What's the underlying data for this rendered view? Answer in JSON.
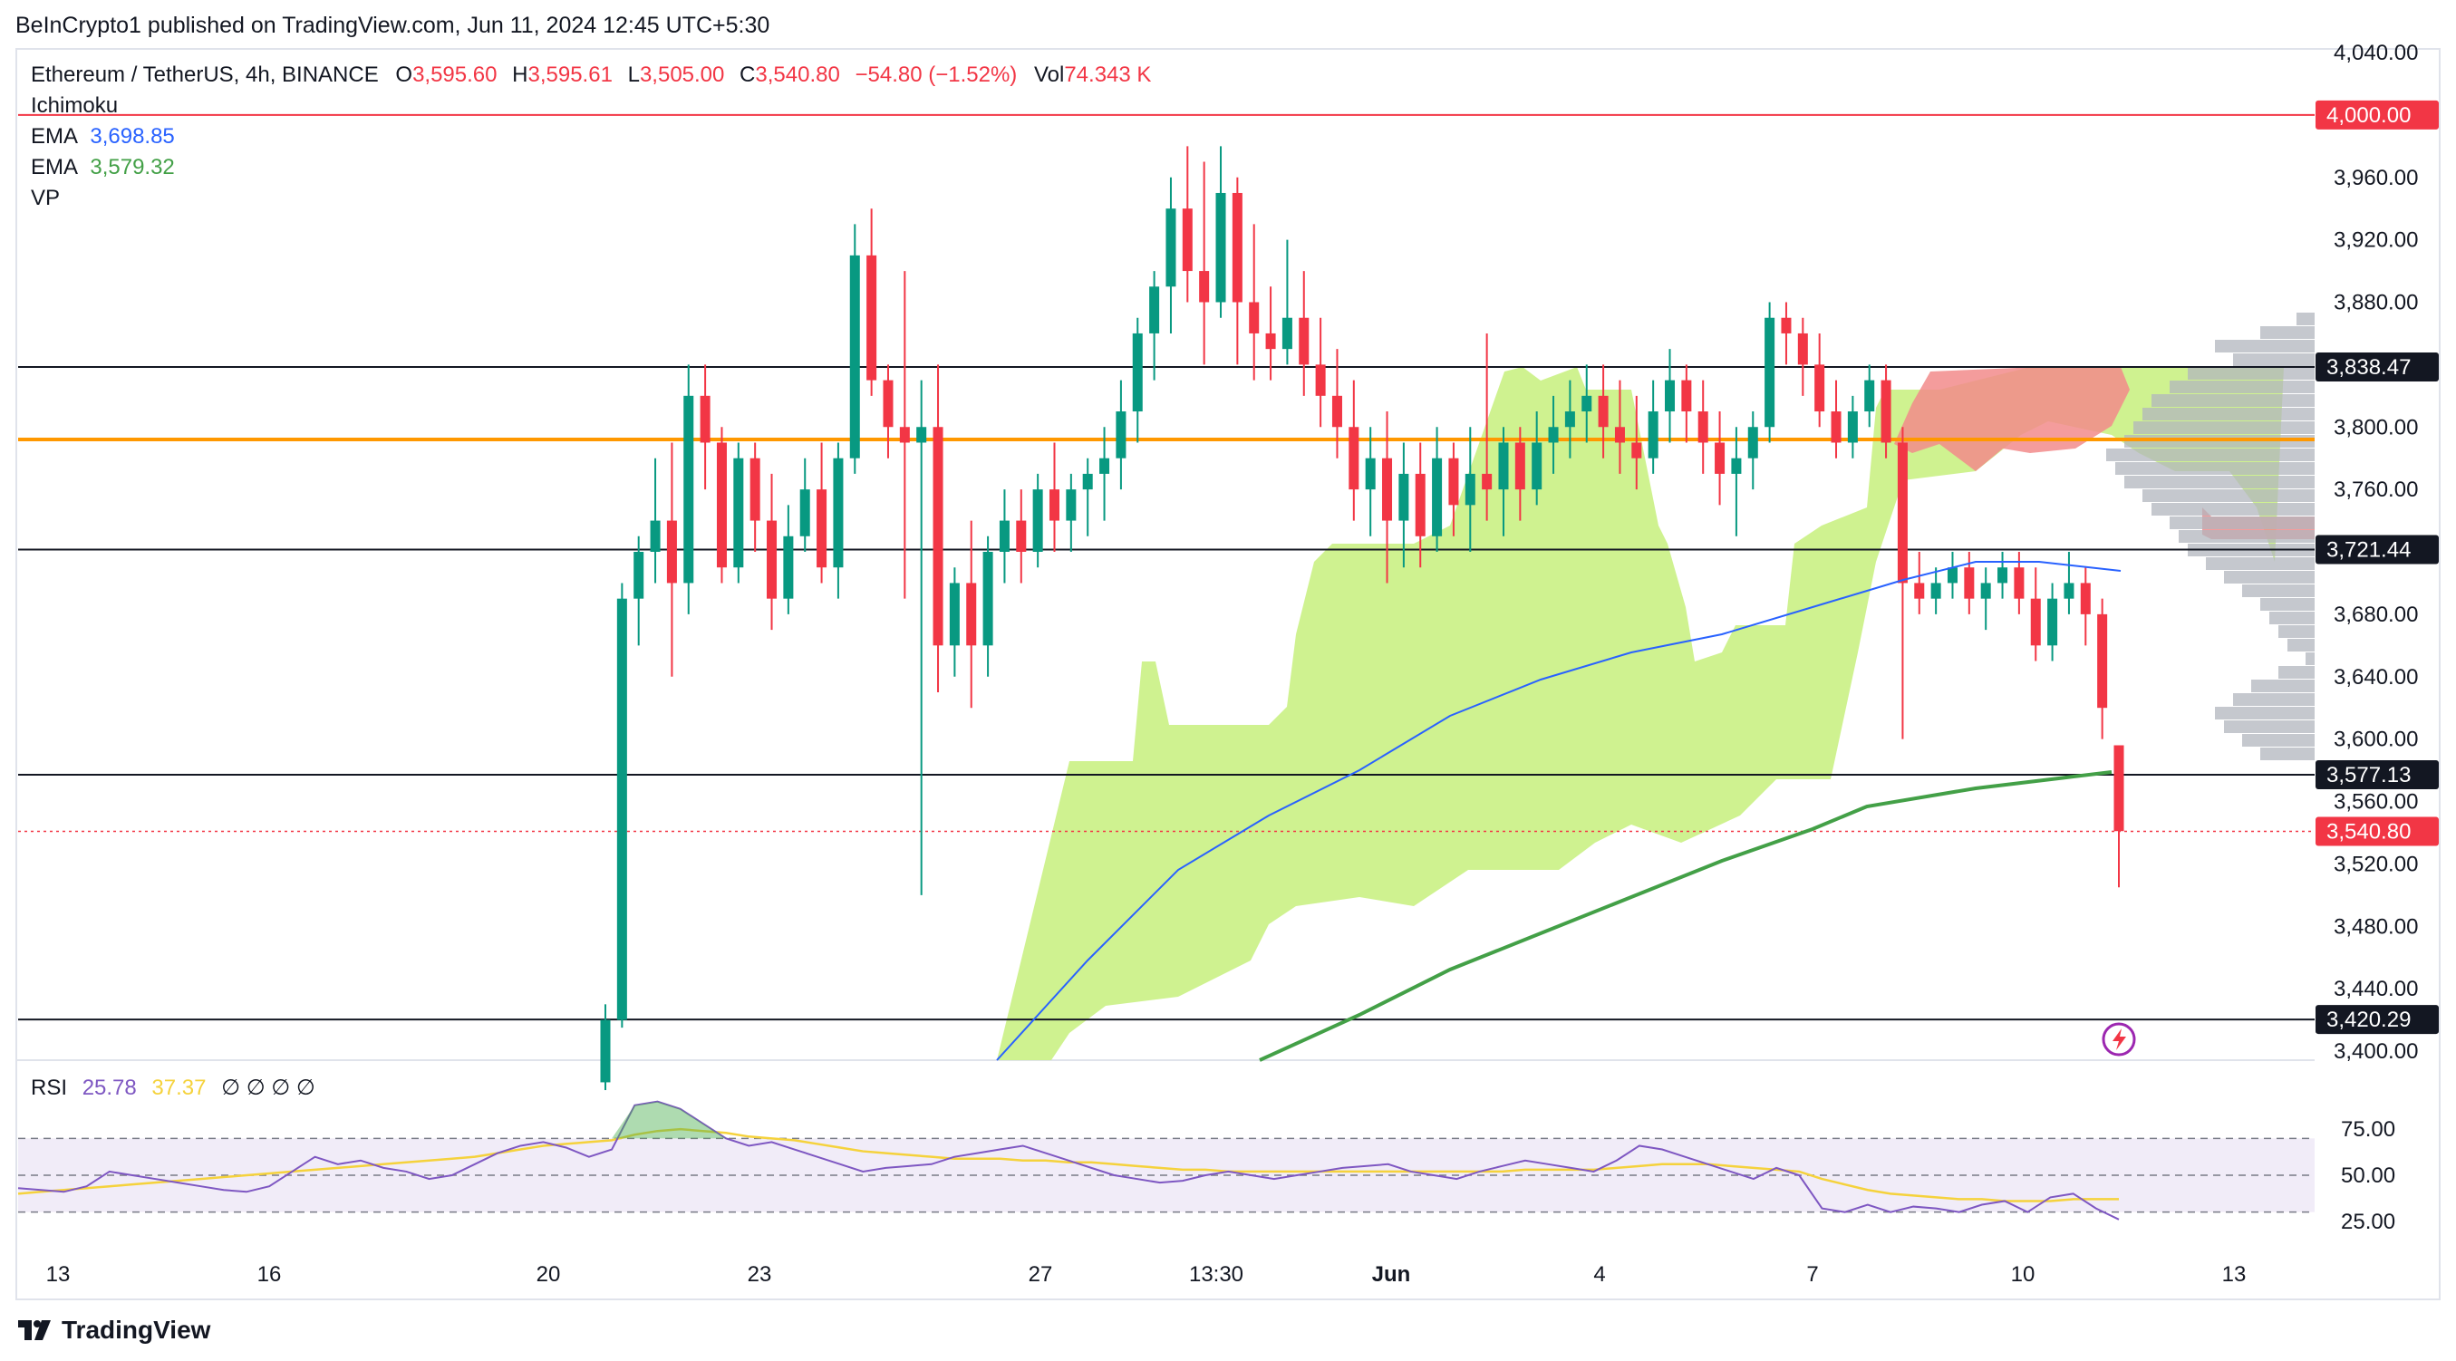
{
  "header": {
    "published": "BeInCrypto1 published on TradingView.com, Jun 11, 2024 12:45 UTC+5:30"
  },
  "legend": {
    "symbol": "Ethereum / TetherUS, 4h, BINANCE",
    "o_label": "O",
    "o_value": "3,595.60",
    "h_label": "H",
    "h_value": "3,595.61",
    "l_label": "L",
    "l_value": "3,505.00",
    "c_label": "C",
    "c_value": "3,540.80",
    "change": "−54.80 (−1.52%)",
    "vol_label": "Vol",
    "vol_value": "74.343 K",
    "ichimoku": "Ichimoku",
    "ema1_label": "EMA",
    "ema1_value": "3,698.85",
    "ema2_label": "EMA",
    "ema2_value": "3,579.32",
    "vp": "VP"
  },
  "rsi_legend": {
    "label": "RSI",
    "rsi": "25.78",
    "ma": "37.37",
    "na": "∅ ∅ ∅ ∅"
  },
  "brand": "TradingView",
  "colors": {
    "up": "#089981",
    "down": "#f23645",
    "ema_fast": "#2962ff",
    "ema_slow": "#43a047",
    "cloud_bull": "#ccf18a",
    "cloud_bear": "#f28b8b",
    "vp": "#b2b5be",
    "orange": "#ff9800",
    "rsi_line": "#7e57c2",
    "rsi_ma": "#f5d23c",
    "rsi_band": "#ede7f6"
  },
  "chart_data": [
    {
      "type": "candlestick",
      "title": "Ethereum / TetherUS, 4h, BINANCE",
      "ylim": [
        3400,
        4040
      ],
      "y_ticks": [
        "4,040.00",
        "4,000.00",
        "3,960.00",
        "3,920.00",
        "3,880.00",
        "3,840.00",
        "3,800.00",
        "3,760.00",
        "3,720.00",
        "3,680.00",
        "3,640.00",
        "3,600.00",
        "3,560.00",
        "3,520.00",
        "3,480.00",
        "3,440.00",
        "3,400.00"
      ],
      "x_ticks": [
        "13",
        "16",
        "20",
        "23",
        "27",
        "13:30",
        "Jun",
        "4",
        "7",
        "10",
        "13"
      ],
      "horizontal_levels": [
        {
          "value": 4000.0,
          "label": "4,000.00",
          "color": "#f23645"
        },
        {
          "value": 3838.47,
          "label": "3,838.47",
          "color": "#131722"
        },
        {
          "value": 3721.44,
          "label": "3,721.44",
          "color": "#131722"
        },
        {
          "value": 3577.13,
          "label": "3,577.13",
          "color": "#131722"
        },
        {
          "value": 3420.29,
          "label": "3,420.29",
          "color": "#131722"
        },
        {
          "value": 3792,
          "label": "",
          "color": "#ff9800"
        }
      ],
      "last_price": {
        "value": 3540.8,
        "label": "3,540.80"
      },
      "candles_ohlc": [
        [
          3380,
          3430,
          3375,
          3420
        ],
        [
          3420,
          3700,
          3415,
          3690
        ],
        [
          3690,
          3730,
          3660,
          3720
        ],
        [
          3720,
          3780,
          3700,
          3740
        ],
        [
          3740,
          3790,
          3640,
          3700
        ],
        [
          3700,
          3840,
          3680,
          3820
        ],
        [
          3820,
          3840,
          3760,
          3790
        ],
        [
          3790,
          3800,
          3700,
          3710
        ],
        [
          3710,
          3790,
          3700,
          3780
        ],
        [
          3780,
          3790,
          3720,
          3740
        ],
        [
          3740,
          3770,
          3670,
          3690
        ],
        [
          3690,
          3750,
          3680,
          3730
        ],
        [
          3730,
          3780,
          3720,
          3760
        ],
        [
          3760,
          3790,
          3700,
          3710
        ],
        [
          3710,
          3790,
          3690,
          3780
        ],
        [
          3780,
          3930,
          3770,
          3910
        ],
        [
          3910,
          3940,
          3820,
          3830
        ],
        [
          3830,
          3840,
          3780,
          3800
        ],
        [
          3800,
          3900,
          3690,
          3790
        ],
        [
          3790,
          3830,
          3500,
          3800
        ],
        [
          3800,
          3840,
          3630,
          3660
        ],
        [
          3660,
          3710,
          3640,
          3700
        ],
        [
          3700,
          3740,
          3620,
          3660
        ],
        [
          3660,
          3730,
          3640,
          3720
        ],
        [
          3720,
          3760,
          3700,
          3740
        ],
        [
          3740,
          3760,
          3700,
          3720
        ],
        [
          3720,
          3770,
          3710,
          3760
        ],
        [
          3760,
          3790,
          3720,
          3740
        ],
        [
          3740,
          3770,
          3720,
          3760
        ],
        [
          3760,
          3780,
          3730,
          3770
        ],
        [
          3770,
          3800,
          3740,
          3780
        ],
        [
          3780,
          3830,
          3760,
          3810
        ],
        [
          3810,
          3870,
          3790,
          3860
        ],
        [
          3860,
          3900,
          3830,
          3890
        ],
        [
          3890,
          3960,
          3860,
          3940
        ],
        [
          3940,
          3980,
          3880,
          3900
        ],
        [
          3900,
          3970,
          3840,
          3880
        ],
        [
          3880,
          3980,
          3870,
          3950
        ],
        [
          3950,
          3960,
          3840,
          3880
        ],
        [
          3880,
          3930,
          3830,
          3860
        ],
        [
          3860,
          3890,
          3830,
          3850
        ],
        [
          3850,
          3920,
          3840,
          3870
        ],
        [
          3870,
          3900,
          3820,
          3840
        ],
        [
          3840,
          3870,
          3800,
          3820
        ],
        [
          3820,
          3850,
          3780,
          3800
        ],
        [
          3800,
          3830,
          3740,
          3760
        ],
        [
          3760,
          3800,
          3730,
          3780
        ],
        [
          3780,
          3810,
          3700,
          3740
        ],
        [
          3740,
          3790,
          3710,
          3770
        ],
        [
          3770,
          3790,
          3710,
          3730
        ],
        [
          3730,
          3800,
          3720,
          3780
        ],
        [
          3780,
          3790,
          3730,
          3750
        ],
        [
          3750,
          3800,
          3720,
          3770
        ],
        [
          3770,
          3860,
          3740,
          3760
        ],
        [
          3760,
          3800,
          3730,
          3790
        ],
        [
          3790,
          3800,
          3740,
          3760
        ],
        [
          3760,
          3810,
          3750,
          3790
        ],
        [
          3790,
          3820,
          3770,
          3800
        ],
        [
          3800,
          3830,
          3780,
          3810
        ],
        [
          3810,
          3840,
          3790,
          3820
        ],
        [
          3820,
          3840,
          3780,
          3800
        ],
        [
          3800,
          3830,
          3770,
          3790
        ],
        [
          3790,
          3820,
          3760,
          3780
        ],
        [
          3780,
          3830,
          3770,
          3810
        ],
        [
          3810,
          3850,
          3790,
          3830
        ],
        [
          3830,
          3840,
          3790,
          3810
        ],
        [
          3810,
          3830,
          3770,
          3790
        ],
        [
          3790,
          3810,
          3750,
          3770
        ],
        [
          3770,
          3800,
          3730,
          3780
        ],
        [
          3780,
          3810,
          3760,
          3800
        ],
        [
          3800,
          3880,
          3790,
          3870
        ],
        [
          3870,
          3880,
          3840,
          3860
        ],
        [
          3860,
          3870,
          3820,
          3840
        ],
        [
          3840,
          3860,
          3800,
          3810
        ],
        [
          3810,
          3830,
          3780,
          3790
        ],
        [
          3790,
          3820,
          3780,
          3810
        ],
        [
          3810,
          3840,
          3800,
          3830
        ],
        [
          3830,
          3840,
          3780,
          3790
        ],
        [
          3790,
          3800,
          3600,
          3700
        ],
        [
          3700,
          3720,
          3680,
          3690
        ],
        [
          3690,
          3710,
          3680,
          3700
        ],
        [
          3700,
          3720,
          3690,
          3710
        ],
        [
          3710,
          3720,
          3680,
          3690
        ],
        [
          3690,
          3710,
          3670,
          3700
        ],
        [
          3700,
          3720,
          3690,
          3710
        ],
        [
          3710,
          3720,
          3680,
          3690
        ],
        [
          3690,
          3710,
          3650,
          3660
        ],
        [
          3660,
          3700,
          3650,
          3690
        ],
        [
          3690,
          3720,
          3680,
          3700
        ],
        [
          3700,
          3710,
          3660,
          3680
        ],
        [
          3680,
          3690,
          3600,
          3620
        ],
        [
          3596,
          3596,
          3505,
          3541
        ]
      ],
      "indicators": [
        "Ichimoku",
        "EMA 3,698.85",
        "EMA 3,579.32",
        "VP"
      ]
    },
    {
      "type": "line",
      "title": "RSI",
      "ylim": [
        20,
        80
      ],
      "y_ticks": [
        "75.00",
        "50.00",
        "25.00"
      ],
      "bands": [
        70,
        50,
        30
      ],
      "series": [
        {
          "name": "RSI",
          "values": [
            43,
            42,
            41,
            44,
            52,
            50,
            48,
            46,
            44,
            42,
            41,
            44,
            52,
            60,
            56,
            58,
            54,
            52,
            48,
            50,
            56,
            62,
            66,
            68,
            65,
            60,
            64,
            88,
            90,
            86,
            78,
            70,
            66,
            68,
            64,
            60,
            56,
            52,
            54,
            55,
            56,
            60,
            62,
            64,
            66,
            62,
            58,
            54,
            50,
            48,
            46,
            47,
            50,
            52,
            50,
            48,
            50,
            52,
            54,
            55,
            56,
            52,
            50,
            48,
            52,
            55,
            58,
            56,
            54,
            52,
            58,
            66,
            64,
            60,
            56,
            52,
            48,
            54,
            50,
            32,
            30,
            34,
            30,
            33,
            32,
            30,
            34,
            36,
            30,
            38,
            40,
            32,
            26
          ]
        },
        {
          "name": "MA",
          "values": [
            40,
            41,
            42,
            43,
            44,
            45,
            46,
            47,
            48,
            49,
            50,
            51,
            52,
            53,
            54,
            55,
            56,
            57,
            58,
            59,
            60,
            62,
            64,
            66,
            67,
            68,
            69,
            72,
            74,
            75,
            74,
            73,
            71,
            70,
            69,
            67,
            65,
            63,
            62,
            61,
            60,
            59,
            59,
            59,
            58,
            58,
            57,
            57,
            56,
            55,
            54,
            53,
            53,
            52,
            52,
            52,
            52,
            52,
            52,
            52,
            52,
            52,
            52,
            52,
            52,
            52,
            53,
            53,
            53,
            53,
            54,
            55,
            56,
            56,
            56,
            55,
            54,
            53,
            52,
            48,
            45,
            42,
            40,
            39,
            38,
            37,
            37,
            36,
            36,
            36,
            37,
            37,
            37
          ]
        }
      ]
    }
  ]
}
